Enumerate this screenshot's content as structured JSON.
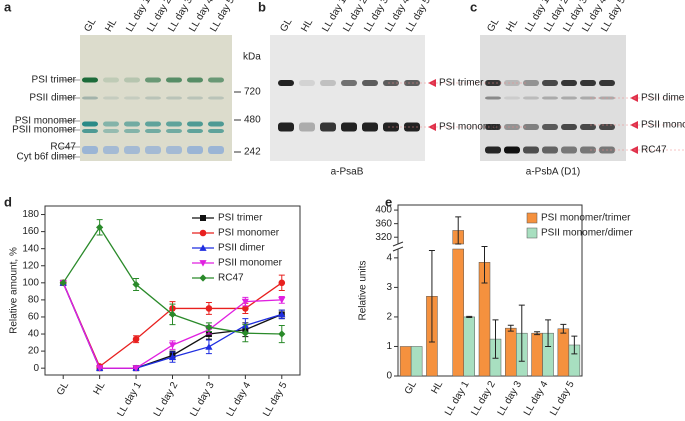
{
  "panel_labels": [
    "a",
    "b",
    "c",
    "d",
    "e"
  ],
  "gel_a": {
    "lanes": [
      "GL",
      "HL",
      "LL day 1",
      "LL day 2",
      "LL day 3",
      "LL day 4",
      "LL day 5"
    ],
    "bands": [
      "PSI trimer",
      "PSII dimer",
      "PSI monomer",
      "PSII monomer",
      "RC47",
      "Cyt b6f dimer"
    ],
    "kda_title": "kDa",
    "kda": [
      720,
      480,
      242
    ]
  },
  "gel_b": {
    "lanes": [
      "GL",
      "HL",
      "LL day 1",
      "LL day 2",
      "LL day 3",
      "LL day 4",
      "LL day 5"
    ],
    "bands": [
      "PSI trimer",
      "PSI monomer"
    ],
    "caption": "a-PsaB"
  },
  "gel_c": {
    "lanes": [
      "GL",
      "HL",
      "LL day 1",
      "LL day 2",
      "LL day 3",
      "LL day 4",
      "LL day 5"
    ],
    "bands": [
      "PSII dimer",
      "PSII monomer",
      "RC47"
    ],
    "caption": "a-PsbA (D1)"
  },
  "chart_data": [
    {
      "type": "line",
      "y_label": "Relative amount, %",
      "categories": [
        "GL",
        "HL",
        "LL day 1",
        "LL day 2",
        "LL day 3",
        "LL day 4",
        "LL day 5"
      ],
      "ylim": [
        -8,
        190
      ],
      "yticks": [
        0,
        20,
        40,
        60,
        80,
        100,
        120,
        140,
        160,
        180
      ],
      "series": [
        {
          "name": "PSI trimer",
          "color": "#111111",
          "marker": "square",
          "values": [
            100,
            0,
            0,
            15,
            40,
            45,
            63
          ],
          "errors": [
            0,
            0,
            0,
            5,
            6,
            8,
            5
          ]
        },
        {
          "name": "PSI monomer",
          "color": "#e8201f",
          "marker": "circle",
          "values": [
            100,
            2,
            34,
            70,
            70,
            70,
            100
          ],
          "errors": [
            0,
            0,
            4,
            8,
            7,
            6,
            9
          ]
        },
        {
          "name": "PSII dimer",
          "color": "#1f2ee0",
          "marker": "triangle-up",
          "values": [
            100,
            0,
            0,
            13,
            25,
            50,
            63
          ],
          "errors": [
            0,
            0,
            0,
            6,
            8,
            8,
            5
          ]
        },
        {
          "name": "PSII monomer",
          "color": "#e020e0",
          "marker": "triangle-down",
          "values": [
            100,
            0,
            0,
            27,
            45,
            78,
            80
          ],
          "errors": [
            0,
            0,
            0,
            5,
            5,
            5,
            4
          ]
        },
        {
          "name": "RC47",
          "color": "#2a8a2a",
          "marker": "diamond",
          "values": [
            100,
            165,
            98,
            63,
            48,
            41,
            40
          ],
          "errors": [
            0,
            9,
            7,
            12,
            5,
            10,
            10
          ]
        }
      ]
    },
    {
      "type": "bar",
      "y_label": "Relative units",
      "categories": [
        "GL",
        "HL",
        "LL day 1",
        "LL day 2",
        "LL day 3",
        "LL day 4",
        "LL day 5"
      ],
      "ysegments": [
        {
          "ylim": [
            0,
            4.3
          ],
          "yticks": [
            0,
            1,
            2,
            3,
            4
          ]
        },
        {
          "ylim": [
            300,
            415
          ],
          "yticks": [
            320,
            360,
            400
          ]
        }
      ],
      "series": [
        {
          "name": "PSI monomer/trimer",
          "color": "#f5913e",
          "values": [
            1,
            2.7,
            340,
            3.85,
            1.62,
            1.45,
            1.6
          ],
          "errors": [
            0,
            1.55,
            40,
            0.7,
            0.1,
            0.05,
            0.15
          ]
        },
        {
          "name": "PSII monomer/dimer",
          "color": "#a8dfc0",
          "values": [
            1,
            null,
            2.0,
            1.25,
            1.45,
            1.45,
            1.05
          ],
          "errors": [
            0,
            null,
            0.02,
            0.65,
            0.95,
            0.45,
            0.3
          ]
        }
      ]
    }
  ]
}
